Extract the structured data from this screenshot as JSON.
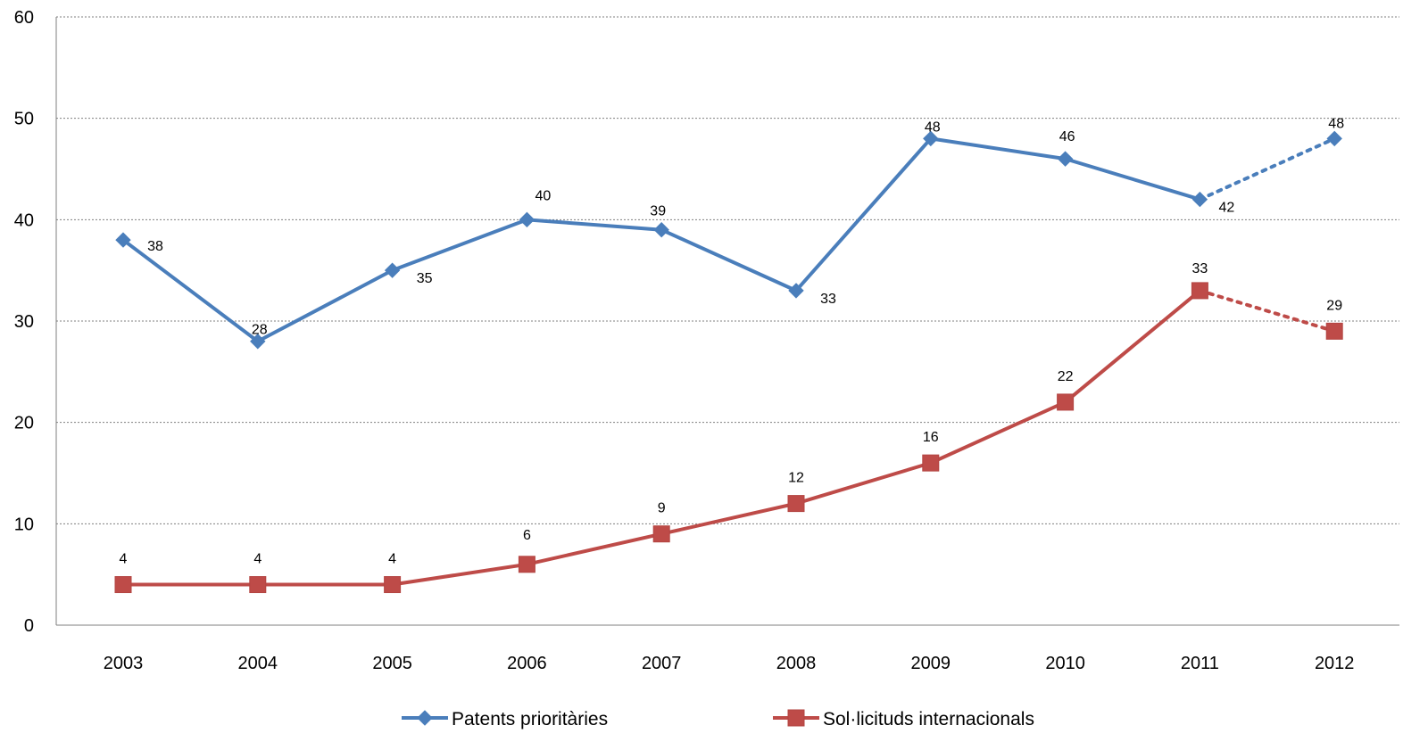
{
  "chart_data": {
    "type": "line",
    "title": "",
    "xlabel": "",
    "ylabel": "",
    "categories": [
      "2003",
      "2004",
      "2005",
      "2006",
      "2007",
      "2008",
      "2009",
      "2010",
      "2011",
      "2012"
    ],
    "ylim": [
      0,
      60
    ],
    "yticks": [
      0,
      10,
      20,
      30,
      40,
      50,
      60
    ],
    "grid": "horizontal dotted",
    "legend": "bottom",
    "series": [
      {
        "name": "Patents prioritàries",
        "values": [
          38,
          28,
          35,
          40,
          39,
          33,
          48,
          46,
          42,
          48
        ],
        "color": "#4a7ebb",
        "marker": "diamond",
        "dotted_from_index": 8
      },
      {
        "name": "Sol·licituds internacionals",
        "values": [
          4,
          4,
          4,
          6,
          9,
          12,
          16,
          22,
          33,
          29
        ],
        "color": "#be4b48",
        "marker": "square",
        "dotted_from_index": 8
      }
    ]
  }
}
